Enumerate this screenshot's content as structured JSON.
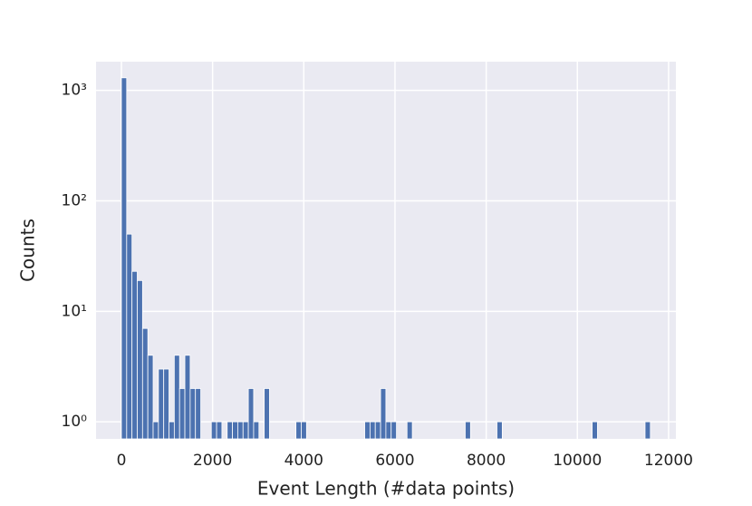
{
  "chart_data": {
    "type": "histogram",
    "xlabel": "Event Length (#data points)",
    "ylabel": "Counts",
    "bins": [
      0,
      116,
      232,
      348,
      464,
      580,
      696,
      812,
      928,
      1044,
      1160,
      1276,
      1392,
      1508,
      1624,
      1740,
      1856,
      1972,
      2088,
      2204,
      2320,
      2436,
      2552,
      2668,
      2784,
      2900,
      3016,
      3132,
      3248,
      3364,
      3480,
      3596,
      3712,
      3828,
      3944,
      4060,
      4176,
      4292,
      4408,
      4524,
      4640,
      4756,
      4872,
      4988,
      5104,
      5220,
      5336,
      5452,
      5568,
      5684,
      5800,
      5916,
      6032,
      6148,
      6264,
      6380,
      6496,
      6612,
      6728,
      6844,
      6960,
      7076,
      7192,
      7308,
      7424,
      7540,
      7656,
      7772,
      7888,
      8004,
      8120,
      8236,
      8352,
      8468,
      8584,
      8700,
      8816,
      8932,
      9048,
      9164,
      9280,
      9396,
      9512,
      9628,
      9744,
      9860,
      9976,
      10092,
      10208,
      10324,
      10440,
      10556,
      10672,
      10788,
      10904,
      11020,
      11136,
      11252,
      11368,
      11484,
      11600
    ],
    "values": [
      1300,
      50,
      23,
      19,
      7,
      4,
      1,
      3,
      3,
      1,
      4,
      2,
      4,
      2,
      2,
      0,
      0,
      1,
      1,
      0,
      1,
      1,
      1,
      1,
      2,
      1,
      0,
      2,
      0,
      0,
      0,
      0,
      0,
      1,
      1,
      0,
      0,
      0,
      0,
      0,
      0,
      0,
      0,
      0,
      0,
      0,
      1,
      1,
      1,
      2,
      1,
      1,
      0,
      0,
      1,
      0,
      0,
      0,
      0,
      0,
      0,
      0,
      0,
      0,
      0,
      1,
      0,
      0,
      0,
      0,
      0,
      1,
      0,
      0,
      0,
      0,
      0,
      0,
      0,
      0,
      0,
      0,
      0,
      0,
      0,
      0,
      0,
      0,
      0,
      1,
      0,
      0,
      0,
      0,
      0,
      0,
      0,
      0,
      0,
      1
    ],
    "color": "#4c72b0",
    "xlim": [
      -556,
      12160
    ],
    "xticks": [
      0,
      2000,
      4000,
      6000,
      8000,
      10000,
      12000
    ],
    "ylim": [
      0.7,
      1820
    ],
    "yscale": "log",
    "yticks": [
      {
        "value": 1,
        "label": "10⁰"
      },
      {
        "value": 10,
        "label": "10¹"
      },
      {
        "value": 100,
        "label": "10²"
      },
      {
        "value": 1000,
        "label": "10³"
      }
    ],
    "grid": true
  }
}
